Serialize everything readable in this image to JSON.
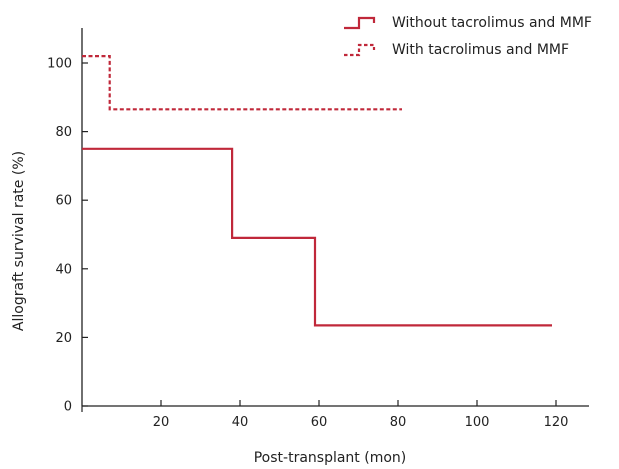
{
  "chart_data": {
    "type": "line",
    "step": true,
    "title": "",
    "xlabel": "Post-transplant (mon)",
    "ylabel": "Allograft survival rate (%)",
    "xlim": [
      0,
      120
    ],
    "ylim": [
      0,
      100
    ],
    "x_ticks": [
      20,
      40,
      60,
      80,
      100,
      120
    ],
    "y_ticks": [
      0,
      20,
      40,
      60,
      80,
      100
    ],
    "grid": false,
    "legend_position": "top-right",
    "series": [
      {
        "name": "Without tacrolimus and MMF",
        "style": "solid",
        "color": "#c0283a",
        "x": [
          0,
          38,
          38,
          59,
          59,
          119
        ],
        "y": [
          75,
          75,
          49,
          49,
          23.5,
          23.5
        ]
      },
      {
        "name": "With tacrolimus and MMF",
        "style": "dashed",
        "color": "#c0283a",
        "x": [
          0,
          7,
          7,
          81
        ],
        "y": [
          102,
          102,
          86.5,
          86.5
        ]
      }
    ]
  }
}
